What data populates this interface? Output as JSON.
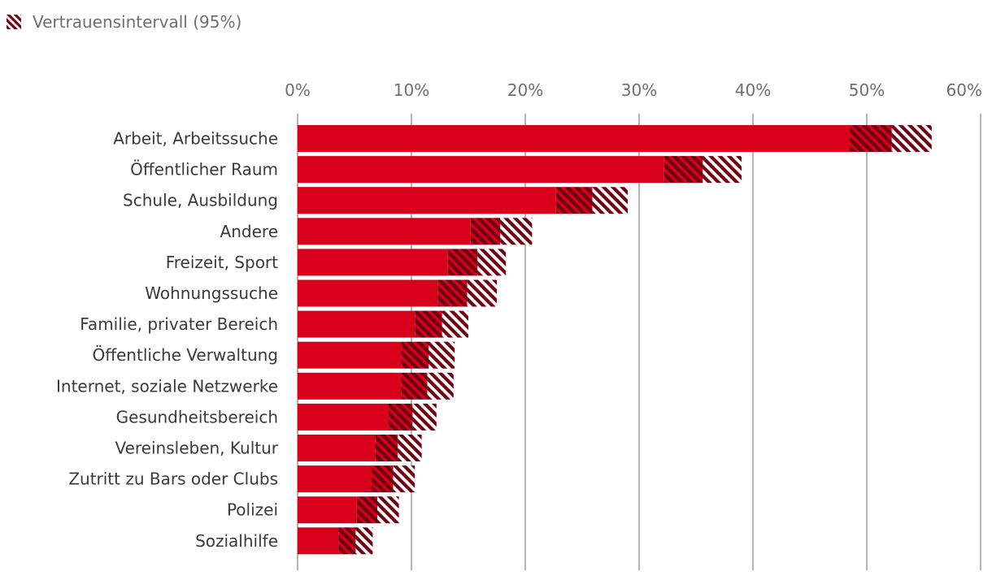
{
  "legend": {
    "label": "Vertrauensintervall (95%)",
    "swatch_icon": "hatch-swatch-icon"
  },
  "colors": {
    "bar": "#d9001b",
    "hatch_dark": "#6e0012",
    "hatch_light": "#ffffff",
    "grid": "#8c8c8c",
    "tick_text": "#6f6f6f",
    "category_text": "#3a3a3a"
  },
  "chart_data": {
    "type": "bar",
    "orientation": "horizontal",
    "xlabel": "",
    "ylabel": "",
    "xlim": [
      0,
      60
    ],
    "x_ticks": [
      "0%",
      "10%",
      "20%",
      "30%",
      "40%",
      "50%",
      "60%"
    ],
    "x_axis_position": "top",
    "grid": true,
    "legend_position": "top-left",
    "categories": [
      "Arbeit, Arbeitssuche",
      "Öffentlicher Raum",
      "Schule, Ausbildung",
      "Andere",
      "Freizeit, Sport",
      "Wohnungssuche",
      "Familie, privater Bereich",
      "Öffentliche Verwaltung",
      "Internet, soziale Netzwerke",
      "Gesundheitsbereich",
      "Vereinsleben, Kultur",
      "Zutritt zu Bars oder Clubs",
      "Polizei",
      "Sozialhilfe"
    ],
    "values": [
      52.2,
      35.6,
      25.9,
      17.8,
      15.8,
      14.9,
      12.7,
      11.5,
      11.4,
      10.1,
      8.8,
      8.4,
      7.0,
      5.1
    ],
    "ci_lower": [
      48.5,
      32.2,
      22.7,
      15.2,
      13.2,
      12.3,
      10.3,
      9.1,
      9.1,
      8.0,
      6.8,
      6.5,
      5.2,
      3.6
    ],
    "ci_upper": [
      55.7,
      39.0,
      29.0,
      20.6,
      18.3,
      17.5,
      15.0,
      13.8,
      13.7,
      12.2,
      10.9,
      10.3,
      8.9,
      6.6
    ]
  }
}
